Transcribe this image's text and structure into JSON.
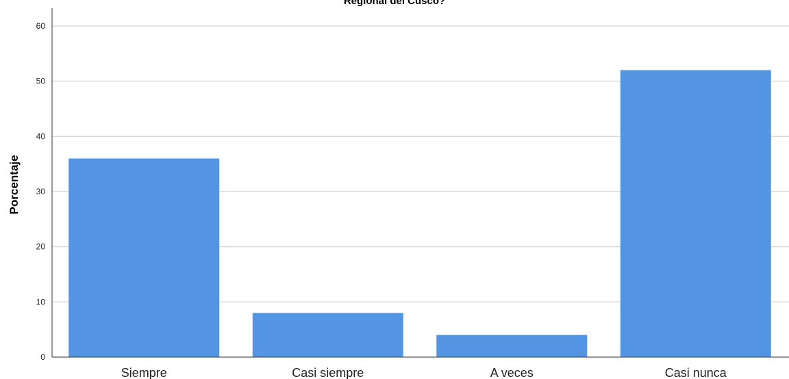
{
  "chart_data": {
    "type": "bar",
    "title": "Regional del Cusco?",
    "xlabel": "",
    "ylabel": "Porcentaje",
    "categories": [
      "Siempre",
      "Casi siempre",
      "A veces",
      "Casi nunca"
    ],
    "values": [
      36,
      8,
      4,
      52
    ],
    "ylim": [
      0,
      60
    ],
    "yticks": [
      0,
      10,
      20,
      30,
      40,
      50,
      60
    ],
    "grid": true,
    "bar_color": "#5495e3"
  }
}
